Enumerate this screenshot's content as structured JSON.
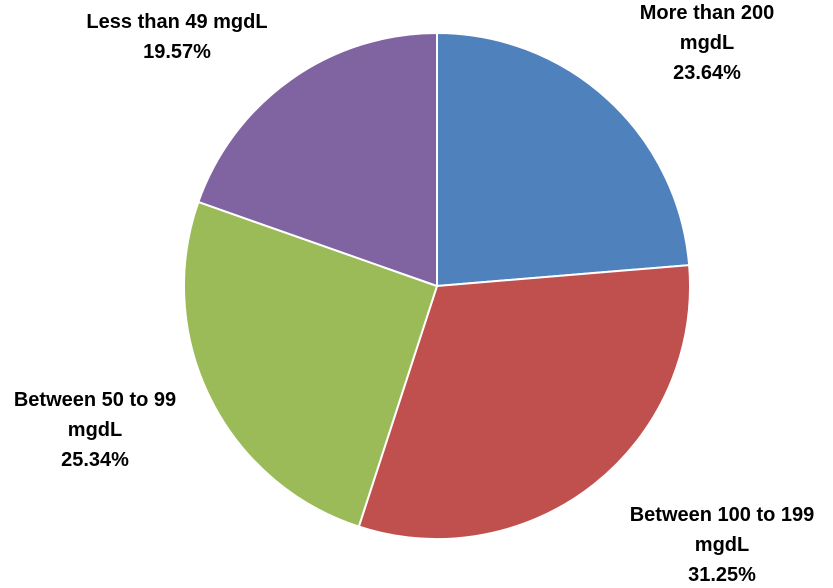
{
  "chart_data": {
    "type": "pie",
    "title": "",
    "legend": "none",
    "slices": [
      {
        "label_lines": [
          "More than 200",
          "mgdL"
        ],
        "percent_label": "23.64%",
        "value": 23.64,
        "color": "#4F81BD"
      },
      {
        "label_lines": [
          "Between 100 to 199",
          "mgdL"
        ],
        "percent_label": "31.25%",
        "value": 31.25,
        "color": "#C0504D"
      },
      {
        "label_lines": [
          "Between 50 to 99",
          "mgdL"
        ],
        "percent_label": "25.34%",
        "value": 25.34,
        "color": "#9BBB59"
      },
      {
        "label_lines": [
          "Less than 49 mgdL"
        ],
        "percent_label": "19.57%",
        "value": 19.57,
        "color": "#8064A2"
      }
    ]
  }
}
